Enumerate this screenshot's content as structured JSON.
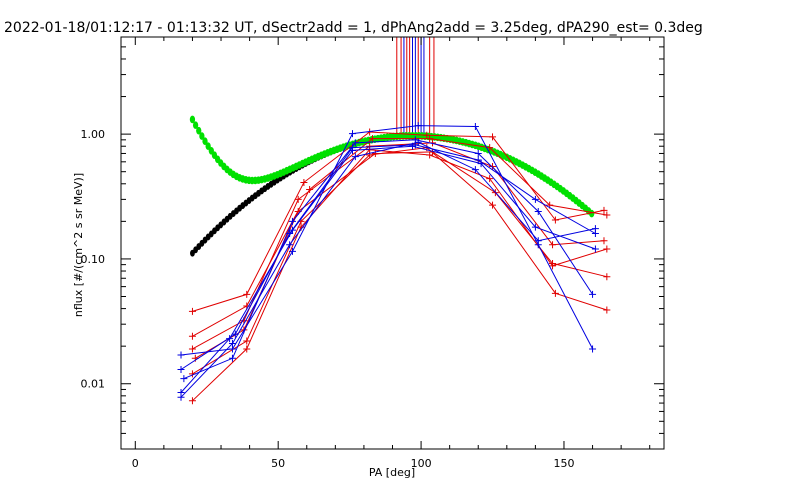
{
  "chart_data": {
    "type": "line",
    "title": "2022-01-18/01:12:17 - 01:13:32 UT, dSectr2add = 1, dPhAng2add = 3.25deg, dPA290_est=    0.3deg",
    "xlabel": "PA [deg]",
    "ylabel": "nflux [#/(cm^2 s sr MeV)]",
    "xlim": [
      -5,
      185
    ],
    "ylim": [
      0.003,
      6
    ],
    "yscale": "log",
    "grid": false,
    "xticks": [
      {
        "value": 0,
        "label": "0"
      },
      {
        "value": 50,
        "label": "50"
      },
      {
        "value": 100,
        "label": "100"
      },
      {
        "value": 150,
        "label": "150"
      }
    ],
    "yticks": [
      {
        "value": 0.01,
        "label": "0.01"
      },
      {
        "value": 0.1,
        "label": "0.10"
      },
      {
        "value": 1,
        "label": "1.00"
      }
    ],
    "colors": {
      "red": "#e00000",
      "blue": "#0000e0",
      "green": "#00e000",
      "black": "#000000"
    },
    "vertical_markers": [
      {
        "x": 91.5,
        "color": "#e00000"
      },
      {
        "x": 93.0,
        "color": "#e00000"
      },
      {
        "x": 94.0,
        "color": "#0000e0"
      },
      {
        "x": 95.0,
        "color": "#e00000"
      },
      {
        "x": 96.0,
        "color": "#e00000"
      },
      {
        "x": 97.0,
        "color": "#0000e0"
      },
      {
        "x": 98.0,
        "color": "#0000e0"
      },
      {
        "x": 99.0,
        "color": "#e00000"
      },
      {
        "x": 100.0,
        "color": "#0000e0"
      },
      {
        "x": 101.0,
        "color": "#0000e0"
      },
      {
        "x": 103.0,
        "color": "#e00000"
      },
      {
        "x": 104.5,
        "color": "#e00000"
      }
    ],
    "series": [
      {
        "color": "#e00000",
        "points": [
          [
            20,
            0.038
          ],
          [
            39,
            0.052
          ],
          [
            59,
            0.41
          ],
          [
            82,
            1.04
          ],
          [
            102,
            0.98
          ],
          [
            125,
            0.95
          ],
          [
            147,
            0.205
          ],
          [
            164,
            0.245
          ]
        ]
      },
      {
        "color": "#e00000",
        "points": [
          [
            20,
            0.024
          ],
          [
            39,
            0.042
          ],
          [
            61,
            0.36
          ],
          [
            83,
            0.92
          ],
          [
            103,
            0.92
          ],
          [
            124,
            0.78
          ],
          [
            145,
            0.27
          ],
          [
            165,
            0.225
          ]
        ]
      },
      {
        "color": "#e00000",
        "points": [
          [
            20,
            0.019
          ],
          [
            38,
            0.032
          ],
          [
            57,
            0.3
          ],
          [
            82,
            0.8
          ],
          [
            104,
            0.85
          ],
          [
            125,
            0.55
          ],
          [
            146,
            0.13
          ],
          [
            164,
            0.14
          ]
        ]
      },
      {
        "color": "#e00000",
        "points": [
          [
            21,
            0.016
          ],
          [
            38,
            0.027
          ],
          [
            57,
            0.24
          ],
          [
            84,
            0.7
          ],
          [
            104,
            0.72
          ],
          [
            126,
            0.34
          ],
          [
            146,
            0.092
          ],
          [
            165,
            0.072
          ]
        ]
      },
      {
        "color": "#e00000",
        "points": [
          [
            20,
            0.012
          ],
          [
            39,
            0.022
          ],
          [
            58,
            0.2
          ],
          [
            82,
            0.68
          ],
          [
            102,
            0.78
          ],
          [
            125,
            0.27
          ],
          [
            147,
            0.053
          ],
          [
            165,
            0.039
          ]
        ]
      },
      {
        "color": "#e00000",
        "points": [
          [
            20,
            0.0073
          ],
          [
            39,
            0.019
          ],
          [
            58,
            0.18
          ],
          [
            82,
            0.75
          ],
          [
            103,
            0.68
          ],
          [
            124,
            0.44
          ],
          [
            146,
            0.088
          ],
          [
            165,
            0.12
          ]
        ]
      },
      {
        "color": "#0000e0",
        "points": [
          [
            16,
            0.017
          ],
          [
            34,
            0.019
          ],
          [
            55,
            0.115
          ],
          [
            76,
            1.01
          ],
          [
            99,
            1.17
          ],
          [
            119,
            1.15
          ],
          [
            141,
            0.13
          ],
          [
            160,
            0.019
          ]
        ]
      },
      {
        "color": "#0000e0",
        "points": [
          [
            16,
            0.013
          ],
          [
            35,
            0.025
          ],
          [
            54,
            0.16
          ],
          [
            76,
            0.78
          ],
          [
            98,
            0.82
          ],
          [
            120,
            0.62
          ],
          [
            140,
            0.3
          ],
          [
            161,
            0.16
          ]
        ]
      },
      {
        "color": "#0000e0",
        "points": [
          [
            17,
            0.011
          ],
          [
            34,
            0.016
          ],
          [
            55,
            0.2
          ],
          [
            77,
            0.85
          ],
          [
            98,
            0.9
          ],
          [
            120,
            0.7
          ],
          [
            141,
            0.24
          ],
          [
            160,
            0.052
          ]
        ]
      },
      {
        "color": "#0000e0",
        "points": [
          [
            16,
            0.0085
          ],
          [
            33,
            0.023
          ],
          [
            55,
            0.17
          ],
          [
            76,
            0.74
          ],
          [
            97,
            0.8
          ],
          [
            121,
            0.58
          ],
          [
            140,
            0.18
          ],
          [
            161,
            0.12
          ]
        ]
      },
      {
        "color": "#0000e0",
        "points": [
          [
            16,
            0.0078
          ],
          [
            34,
            0.021
          ],
          [
            54,
            0.13
          ],
          [
            77,
            0.66
          ],
          [
            99,
            0.86
          ],
          [
            119,
            0.52
          ],
          [
            141,
            0.14
          ],
          [
            161,
            0.175
          ]
        ]
      }
    ],
    "curves": [
      {
        "name": "",
        "color": "#000000",
        "x_start": 20,
        "x_end": 160,
        "step": 1.1
      },
      {
        "name": "",
        "color": "#00e000",
        "x_start": 20,
        "x_end": 160,
        "step": 1.1
      }
    ]
  }
}
